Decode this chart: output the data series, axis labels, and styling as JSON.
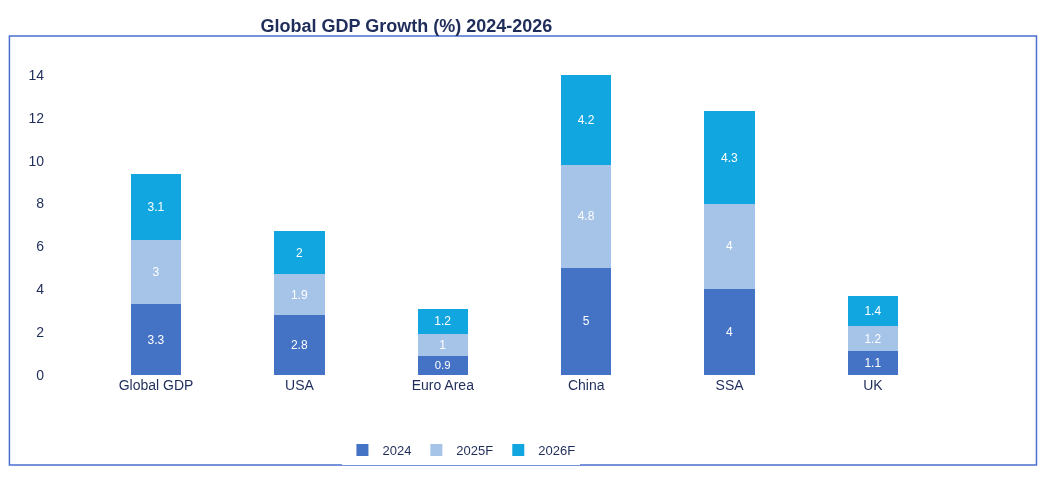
{
  "chart_data": {
    "type": "bar",
    "title": "Global GDP Growth (%) 2024-2026",
    "stacked": true,
    "categories": [
      "Global GDP",
      "USA",
      "Euro Area",
      "China",
      "SSA",
      "UK"
    ],
    "series": [
      {
        "name": "2024",
        "color": "#4472c4",
        "values": [
          3.3,
          2.8,
          0.9,
          5,
          4,
          1.1
        ]
      },
      {
        "name": "2025F",
        "color": "#a6c3e8",
        "values": [
          3,
          1.9,
          1,
          4.8,
          4,
          1.2
        ]
      },
      {
        "name": "2026F",
        "color": "#12a6e0",
        "values": [
          3.1,
          2,
          1.2,
          4.2,
          4.3,
          1.4
        ]
      }
    ],
    "ylim": [
      0,
      14
    ],
    "yticks": [
      0,
      2,
      4,
      6,
      8,
      10,
      12,
      14
    ],
    "legend": "bottom",
    "data_labels": true
  }
}
